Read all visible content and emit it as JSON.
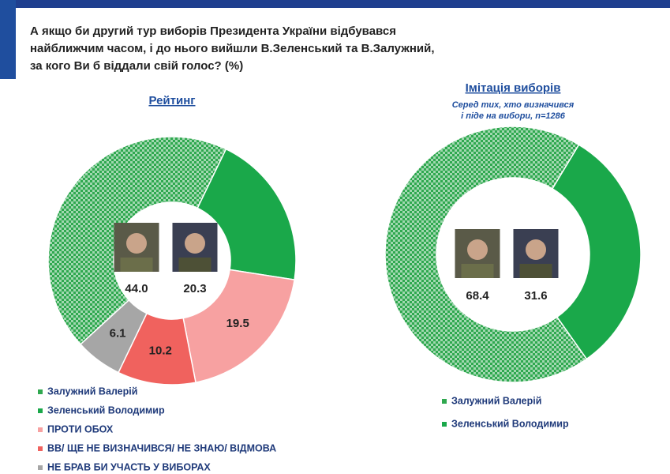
{
  "title": [
    "А якщо би другий тур виборів Президента України відбувався",
    "найближчим часом, і до нього вийшли В.Зеленський та В.Залужний,",
    "за кого Ви б віддали свій голос? (%)"
  ],
  "chart_data": [
    {
      "type": "donut",
      "title": "Рейтинг",
      "categories": [
        "Залужний Валерій",
        "Зеленський Володимир",
        "ПРОТИ ОБОХ",
        "ВВ/ ЩЕ НЕ ВИЗНАЧИВСЯ/ НЕ ЗНАЮ/ ВІДМОВА",
        "НЕ БРАВ БИ УЧАСТЬ У ВИБОРАХ"
      ],
      "values": [
        44.0,
        20.3,
        19.5,
        10.2,
        6.1
      ],
      "value_labels": [
        "44.0",
        "20.3",
        "19.5",
        "10.2",
        "6.1"
      ],
      "colors": [
        "#2fa84f",
        "#1aa84a",
        "#f7a1a1",
        "#f0625e",
        "#a6a6a6"
      ],
      "patterns": [
        "checker",
        "solid",
        "solid",
        "solid",
        "solid"
      ]
    },
    {
      "type": "donut",
      "title": "Імітація виборів",
      "subtitle": [
        "Серед тих, хто визначився",
        "і піде на вибори, n=1286"
      ],
      "categories": [
        "Залужний Валерій",
        "Зеленський Володимир"
      ],
      "values": [
        68.4,
        31.6
      ],
      "value_labels": [
        "68.4",
        "31.6"
      ],
      "colors": [
        "#2fa84f",
        "#1aa84a"
      ],
      "patterns": [
        "checker",
        "solid"
      ]
    }
  ]
}
